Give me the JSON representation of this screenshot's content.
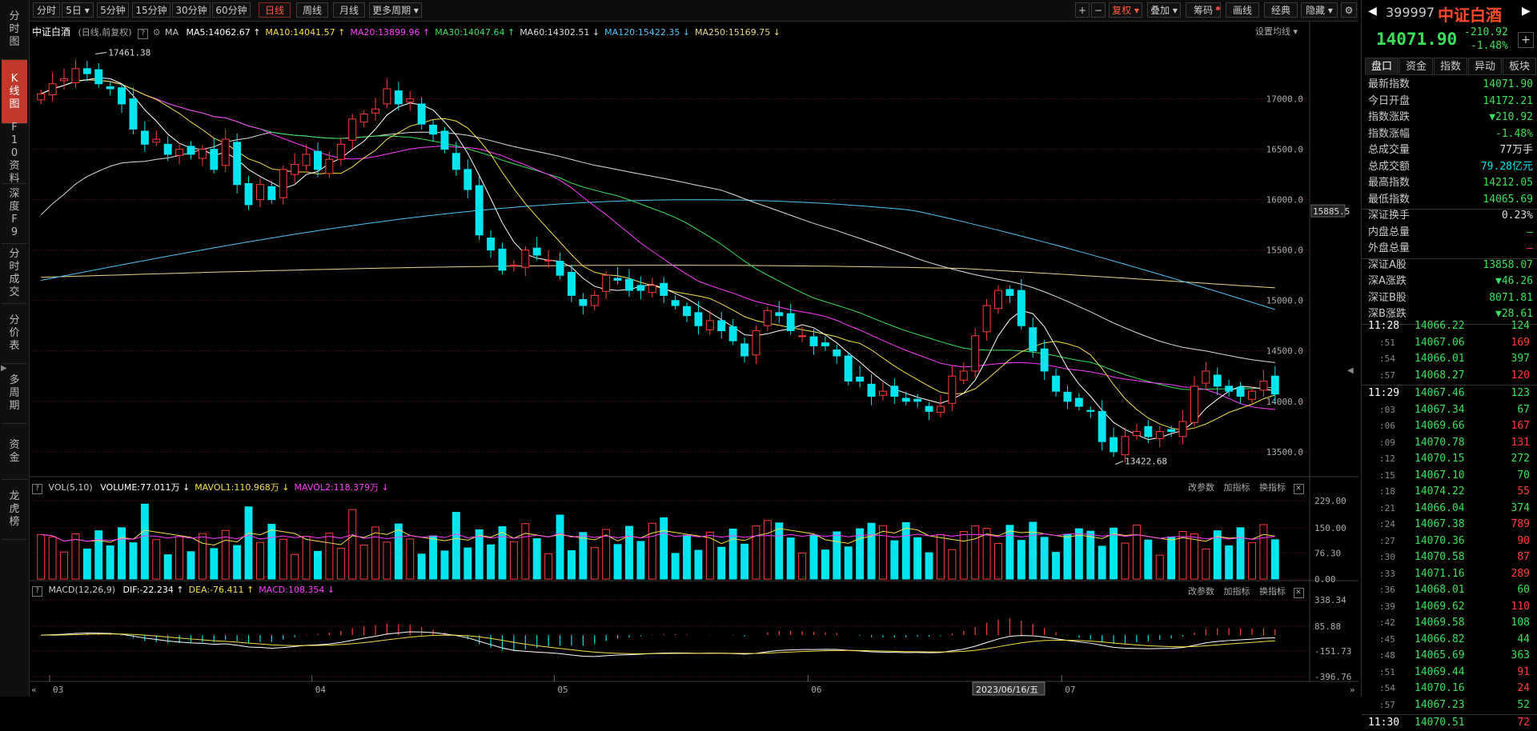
{
  "left_tabs": [
    {
      "label": "分时图"
    },
    {
      "label": "K线图"
    },
    {
      "label": "F10资料"
    },
    {
      "label": "深度F9"
    },
    {
      "label": "分时成交"
    },
    {
      "label": "分价表"
    },
    {
      "label": "多周期"
    },
    {
      "label": "资金"
    },
    {
      "label": "龙虎榜"
    }
  ],
  "toolbar": {
    "periods": [
      "分时",
      "5日 ▾",
      "5分钟",
      "15分钟",
      "30分钟",
      "60分钟",
      "日线",
      "周线",
      "月线",
      "更多周期 ▾"
    ],
    "active_period": "日线",
    "right_buttons": [
      "+",
      "−",
      "复权 ▾",
      "叠加 ▾",
      "筹码",
      "画线",
      "经典",
      "隐藏 ▾"
    ],
    "settings_icon": "gear-icon"
  },
  "main_chart": {
    "name": "中证白酒",
    "mode": "(日线,前复权)",
    "ma_label": "MA",
    "ma_items": [
      {
        "text": "MA5:14062.67 ↑",
        "color": "#ffffff"
      },
      {
        "text": "MA10:14041.57 ↑",
        "color": "#f5e14a"
      },
      {
        "text": "MA20:13899.96 ↑",
        "color": "#ff3bff"
      },
      {
        "text": "MA30:14047.64 ↑",
        "color": "#39e05a"
      },
      {
        "text": "MA60:14302.51 ↓",
        "color": "#dddddd"
      },
      {
        "text": "MA120:15422.35 ↓",
        "color": "#4fc3f7"
      },
      {
        "text": "MA250:15169.75 ↓",
        "color": "#e8d88a"
      }
    ],
    "settings_label": "设置均线 ▾",
    "y_ticks": [
      "17000.0",
      "16500.0",
      "16000.0",
      "15500.0",
      "15000.0",
      "14500.0",
      "14000.0",
      "13500.0"
    ],
    "y_current": "15885.5",
    "high_annotation": "17461.38",
    "low_annotation": "13422.68"
  },
  "vol_panel": {
    "title": "VOL(5,10)",
    "items": [
      {
        "text": "VOLUME:77.011万 ↓",
        "color": "#ffffff"
      },
      {
        "text": "MAVOL1:110.968万 ↓",
        "color": "#f5e14a"
      },
      {
        "text": "MAVOL2:118.379万 ↓",
        "color": "#ff3bff"
      }
    ],
    "actions": [
      "改参数",
      "加指标",
      "换指标"
    ],
    "y_ticks": [
      "229.00",
      "150.00",
      "76.30",
      "0.00"
    ]
  },
  "macd_panel": {
    "title": "MACD(12,26,9)",
    "items": [
      {
        "text": "DIF:-22.234 ↑",
        "color": "#ffffff"
      },
      {
        "text": "DEA:-76.411 ↑",
        "color": "#f5e14a"
      },
      {
        "text": "MACD:108.354 ↓",
        "color": "#ff3bff"
      }
    ],
    "actions": [
      "改参数",
      "加指标",
      "换指标"
    ],
    "y_ticks": [
      "338.34",
      "85.88",
      "-151.73",
      "-396.76"
    ]
  },
  "x_axis": {
    "labels": [
      "03",
      "04",
      "05",
      "06",
      "07"
    ],
    "cursor_date": "2023/06/16/五"
  },
  "right_panel": {
    "code": "399997",
    "name": "中证白酒",
    "price": "14071.90",
    "change": "-210.92",
    "change_pct": "-1.48%",
    "tabs": [
      "盘口",
      "资金",
      "指数",
      "异动",
      "板块"
    ],
    "stats": [
      {
        "k": "最新指数",
        "v": "14071.90",
        "c": "green"
      },
      {
        "k": "今日开盘",
        "v": "14172.21",
        "c": "green"
      },
      {
        "k": "指数涨跌",
        "v": "▼210.92",
        "c": "green"
      },
      {
        "k": "指数涨幅",
        "v": "-1.48%",
        "c": "green"
      },
      {
        "k": "总成交量",
        "v": "77万手",
        "c": "white"
      },
      {
        "k": "总成交额",
        "v": "79.28亿元",
        "c": "cyan"
      },
      {
        "k": "最高指数",
        "v": "14212.05",
        "c": "green"
      },
      {
        "k": "最低指数",
        "v": "14065.69",
        "c": "green"
      }
    ],
    "stats2": [
      {
        "k": "深证换手",
        "v": "0.23%",
        "c": "white"
      },
      {
        "k": "内盘总量",
        "v": "—",
        "c": "green"
      },
      {
        "k": "外盘总量",
        "v": "—",
        "c": "red2"
      }
    ],
    "stats3": [
      {
        "k": "深证A股",
        "v": "13858.07",
        "c": "green"
      },
      {
        "k": "深A涨跌",
        "v": "▼46.26",
        "c": "green"
      },
      {
        "k": "深证B股",
        "v": "8071.81",
        "c": "green"
      },
      {
        "k": "深B涨跌",
        "v": "▼28.61",
        "c": "green"
      }
    ],
    "ticks": [
      {
        "t": "11:28",
        "p": "14066.22",
        "v": "124",
        "pc": "green",
        "vc": "green"
      },
      {
        "t": ":51",
        "p": "14067.06",
        "v": "169",
        "pc": "green",
        "vc": "red2"
      },
      {
        "t": ":54",
        "p": "14066.01",
        "v": "397",
        "pc": "green",
        "vc": "green"
      },
      {
        "t": ":57",
        "p": "14068.27",
        "v": "120",
        "pc": "green",
        "vc": "red2"
      },
      {
        "t": "11:29",
        "p": "14067.46",
        "v": "123",
        "pc": "green",
        "vc": "green"
      },
      {
        "t": ":03",
        "p": "14067.34",
        "v": "67",
        "pc": "green",
        "vc": "green"
      },
      {
        "t": ":06",
        "p": "14069.66",
        "v": "167",
        "pc": "green",
        "vc": "red2"
      },
      {
        "t": ":09",
        "p": "14070.78",
        "v": "131",
        "pc": "green",
        "vc": "red2"
      },
      {
        "t": ":12",
        "p": "14070.15",
        "v": "272",
        "pc": "green",
        "vc": "green"
      },
      {
        "t": ":15",
        "p": "14067.10",
        "v": "70",
        "pc": "green",
        "vc": "green"
      },
      {
        "t": ":18",
        "p": "14074.22",
        "v": "55",
        "pc": "green",
        "vc": "red2"
      },
      {
        "t": ":21",
        "p": "14066.04",
        "v": "374",
        "pc": "green",
        "vc": "green"
      },
      {
        "t": ":24",
        "p": "14067.38",
        "v": "789",
        "pc": "green",
        "vc": "red2"
      },
      {
        "t": ":27",
        "p": "14070.36",
        "v": "90",
        "pc": "green",
        "vc": "red2"
      },
      {
        "t": ":30",
        "p": "14070.58",
        "v": "87",
        "pc": "green",
        "vc": "red2"
      },
      {
        "t": ":33",
        "p": "14071.16",
        "v": "289",
        "pc": "green",
        "vc": "red2"
      },
      {
        "t": ":36",
        "p": "14068.01",
        "v": "60",
        "pc": "green",
        "vc": "green"
      },
      {
        "t": ":39",
        "p": "14069.62",
        "v": "110",
        "pc": "green",
        "vc": "red2"
      },
      {
        "t": ":42",
        "p": "14069.58",
        "v": "108",
        "pc": "green",
        "vc": "green"
      },
      {
        "t": ":45",
        "p": "14066.82",
        "v": "44",
        "pc": "green",
        "vc": "green"
      },
      {
        "t": ":48",
        "p": "14065.69",
        "v": "363",
        "pc": "green",
        "vc": "green"
      },
      {
        "t": ":51",
        "p": "14069.44",
        "v": "91",
        "pc": "green",
        "vc": "red2"
      },
      {
        "t": ":54",
        "p": "14070.16",
        "v": "24",
        "pc": "green",
        "vc": "red2"
      },
      {
        "t": ":57",
        "p": "14067.23",
        "v": "52",
        "pc": "green",
        "vc": "green"
      },
      {
        "t": "11:30",
        "p": "14070.51",
        "v": "72",
        "pc": "green",
        "vc": "red2"
      }
    ]
  },
  "chart_data": [
    {
      "type": "candlestick",
      "title": "中证白酒 (日线,前复权)",
      "ylim": [
        13300,
        17600
      ],
      "x_labels": [
        "03",
        "04",
        "05",
        "06",
        "07"
      ],
      "ohlc_close": [
        17050,
        17150,
        17200,
        17300,
        17250,
        17150,
        17100,
        16950,
        16700,
        16550,
        16600,
        16450,
        16500,
        16450,
        16500,
        16300,
        16600,
        16150,
        15950,
        16150,
        16000,
        16300,
        16350,
        16450,
        16300,
        16400,
        16550,
        16800,
        16850,
        16900,
        17100,
        16950,
        17000,
        16750,
        16650,
        16500,
        16300,
        16100,
        15650,
        15500,
        15300,
        15350,
        15500,
        15450,
        15400,
        15250,
        15050,
        14950,
        15050,
        15250,
        15200,
        15100,
        15100,
        15150,
        15050,
        14950,
        14850,
        14750,
        14800,
        14700,
        14600,
        14450,
        14700,
        14900,
        14850,
        14700,
        14650,
        14550,
        14550,
        14450,
        14200,
        14200,
        14050,
        14100,
        14050,
        14000,
        14000,
        13900,
        13950,
        14250,
        14300,
        14650,
        14950,
        15100,
        15050,
        14750,
        14500,
        14300,
        14100,
        14000,
        13950,
        13900,
        13600,
        13500,
        13650,
        13700,
        13650,
        13700,
        13700,
        13800,
        14150,
        14300,
        14150,
        14100,
        14050,
        14100,
        14200,
        14072
      ]
    }
  ]
}
